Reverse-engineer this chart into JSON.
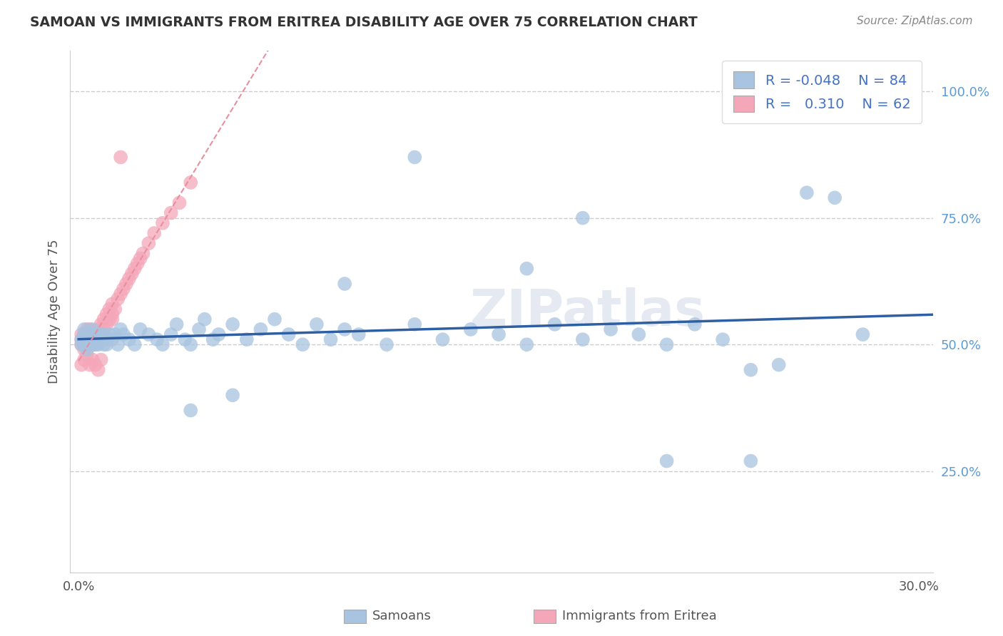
{
  "title": "SAMOAN VS IMMIGRANTS FROM ERITREA DISABILITY AGE OVER 75 CORRELATION CHART",
  "source": "Source: ZipAtlas.com",
  "xlabel_samoans": "Samoans",
  "xlabel_eritrea": "Immigrants from Eritrea",
  "ylabel": "Disability Age Over 75",
  "xlim": [
    -0.003,
    0.305
  ],
  "ylim": [
    0.05,
    1.08
  ],
  "xtick_positions": [
    0.0,
    0.3
  ],
  "xtick_labels": [
    "0.0%",
    "30.0%"
  ],
  "ytick_positions": [
    0.25,
    0.5,
    0.75,
    1.0
  ],
  "ytick_labels": [
    "25.0%",
    "50.0%",
    "75.0%",
    "100.0%"
  ],
  "samoans_color": "#a8c4e0",
  "eritrea_color": "#f4a7b9",
  "trend_samoans_color": "#2e5fa3",
  "trend_eritrea_color": "#e88fa0",
  "legend_r_samoans": "-0.048",
  "legend_n_samoans": "84",
  "legend_r_eritrea": "0.310",
  "legend_n_eritrea": "62",
  "watermark": "ZIPatlas",
  "background_color": "#ffffff",
  "grid_color": "#cccccc",
  "title_color": "#333333",
  "source_color": "#888888",
  "ylabel_color": "#555555",
  "xtick_color": "#555555",
  "ytick_color": "#5b9bd5",
  "legend_text_color": "#4472c4",
  "samoans_x": [
    0.001,
    0.001,
    0.002,
    0.002,
    0.002,
    0.003,
    0.003,
    0.003,
    0.003,
    0.004,
    0.004,
    0.004,
    0.005,
    0.005,
    0.005,
    0.005,
    0.006,
    0.006,
    0.006,
    0.007,
    0.007,
    0.007,
    0.008,
    0.008,
    0.009,
    0.009,
    0.01,
    0.01,
    0.011,
    0.012,
    0.013,
    0.014,
    0.015,
    0.016,
    0.018,
    0.02,
    0.022,
    0.025,
    0.028,
    0.03,
    0.033,
    0.035,
    0.038,
    0.04,
    0.043,
    0.045,
    0.048,
    0.05,
    0.055,
    0.06,
    0.065,
    0.07,
    0.075,
    0.08,
    0.085,
    0.09,
    0.095,
    0.1,
    0.11,
    0.12,
    0.13,
    0.14,
    0.15,
    0.16,
    0.17,
    0.18,
    0.19,
    0.2,
    0.21,
    0.22,
    0.23,
    0.24,
    0.25,
    0.26,
    0.27,
    0.28,
    0.18,
    0.16,
    0.055,
    0.04,
    0.12,
    0.095,
    0.21,
    0.24
  ],
  "samoans_y": [
    0.5,
    0.51,
    0.52,
    0.5,
    0.53,
    0.51,
    0.49,
    0.52,
    0.5,
    0.51,
    0.52,
    0.5,
    0.51,
    0.52,
    0.5,
    0.53,
    0.51,
    0.52,
    0.5,
    0.52,
    0.51,
    0.5,
    0.52,
    0.51,
    0.5,
    0.52,
    0.51,
    0.5,
    0.52,
    0.51,
    0.52,
    0.5,
    0.53,
    0.52,
    0.51,
    0.5,
    0.53,
    0.52,
    0.51,
    0.5,
    0.52,
    0.54,
    0.51,
    0.5,
    0.53,
    0.55,
    0.51,
    0.52,
    0.54,
    0.51,
    0.53,
    0.55,
    0.52,
    0.5,
    0.54,
    0.51,
    0.53,
    0.52,
    0.5,
    0.54,
    0.51,
    0.53,
    0.52,
    0.5,
    0.54,
    0.51,
    0.53,
    0.52,
    0.5,
    0.54,
    0.51,
    0.45,
    0.46,
    0.8,
    0.79,
    0.52,
    0.75,
    0.65,
    0.4,
    0.37,
    0.87,
    0.62,
    0.27,
    0.27
  ],
  "eritrea_x": [
    0.001,
    0.001,
    0.001,
    0.002,
    0.002,
    0.002,
    0.002,
    0.003,
    0.003,
    0.003,
    0.003,
    0.003,
    0.004,
    0.004,
    0.004,
    0.004,
    0.005,
    0.005,
    0.005,
    0.006,
    0.006,
    0.006,
    0.007,
    0.007,
    0.007,
    0.008,
    0.008,
    0.009,
    0.009,
    0.01,
    0.01,
    0.011,
    0.011,
    0.012,
    0.012,
    0.013,
    0.014,
    0.015,
    0.016,
    0.017,
    0.018,
    0.019,
    0.02,
    0.021,
    0.022,
    0.023,
    0.025,
    0.027,
    0.03,
    0.033,
    0.036,
    0.04,
    0.001,
    0.002,
    0.003,
    0.004,
    0.005,
    0.006,
    0.007,
    0.008,
    0.012,
    0.015
  ],
  "eritrea_y": [
    0.5,
    0.51,
    0.52,
    0.49,
    0.51,
    0.52,
    0.5,
    0.51,
    0.52,
    0.5,
    0.51,
    0.53,
    0.51,
    0.52,
    0.5,
    0.53,
    0.51,
    0.52,
    0.5,
    0.51,
    0.52,
    0.5,
    0.51,
    0.52,
    0.53,
    0.52,
    0.54,
    0.53,
    0.55,
    0.54,
    0.56,
    0.55,
    0.57,
    0.56,
    0.58,
    0.57,
    0.59,
    0.6,
    0.61,
    0.62,
    0.63,
    0.64,
    0.65,
    0.66,
    0.67,
    0.68,
    0.7,
    0.72,
    0.74,
    0.76,
    0.78,
    0.82,
    0.46,
    0.47,
    0.48,
    0.46,
    0.47,
    0.46,
    0.45,
    0.47,
    0.55,
    0.87
  ],
  "trend_samoans_intercept": 0.505,
  "trend_samoans_slope": -0.08,
  "trend_eritrea_intercept": 0.44,
  "trend_eritrea_slope": 9.5
}
